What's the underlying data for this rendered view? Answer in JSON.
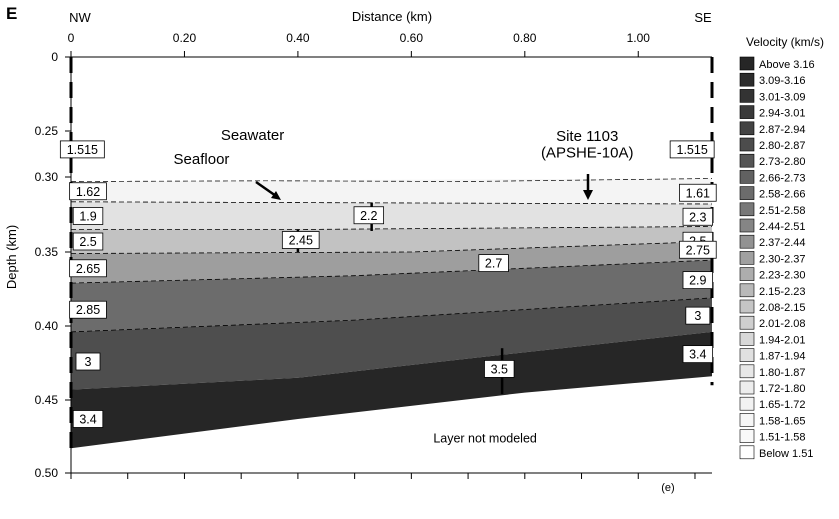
{
  "panel_letter": "E",
  "panel_tag": "(e)",
  "chart_data": {
    "type": "heatmap",
    "title": "",
    "xlabel": "Distance (km)",
    "ylabel": "Depth (km)",
    "xlim": [
      0,
      1.13
    ],
    "ylim": [
      0.5,
      0
    ],
    "x_ticks": [
      "0",
      "0.20",
      "0.40",
      "0.60",
      "0.80",
      "1.00"
    ],
    "x_tick_values": [
      0,
      0.2,
      0.4,
      0.6,
      0.8,
      1.0
    ],
    "y_ticks": [
      "0",
      "0.25",
      "0.30",
      "0.35",
      "0.40",
      "0.45",
      "0.50"
    ],
    "y_tick_values": [
      0,
      0.25,
      0.3,
      0.35,
      0.4,
      0.45,
      0.5
    ],
    "y_axis_note": "axis break between 0 and 0.25 km",
    "grid": false,
    "end_labels": {
      "left": "NW",
      "right": "SE"
    },
    "legend": {
      "title": "Velocity (km/s)",
      "position": "right",
      "entries": [
        {
          "label": "Above 3.16",
          "color": "#262626"
        },
        {
          "label": "3.09-3.16",
          "color": "#2c2c2c"
        },
        {
          "label": "3.01-3.09",
          "color": "#333333"
        },
        {
          "label": "2.94-3.01",
          "color": "#3a3a3a"
        },
        {
          "label": "2.87-2.94",
          "color": "#434343"
        },
        {
          "label": "2.80-2.87",
          "color": "#4c4c4c"
        },
        {
          "label": "2.73-2.80",
          "color": "#555555"
        },
        {
          "label": "2.66-2.73",
          "color": "#616161"
        },
        {
          "label": "2.58-2.66",
          "color": "#6c6c6c"
        },
        {
          "label": "2.51-2.58",
          "color": "#787878"
        },
        {
          "label": "2.44-2.51",
          "color": "#858585"
        },
        {
          "label": "2.37-2.44",
          "color": "#929292"
        },
        {
          "label": "2.30-2.37",
          "color": "#a0a0a0"
        },
        {
          "label": "2.23-2.30",
          "color": "#adadad"
        },
        {
          "label": "2.15-2.23",
          "color": "#b9b9b9"
        },
        {
          "label": "2.08-2.15",
          "color": "#c5c5c5"
        },
        {
          "label": "2.01-2.08",
          "color": "#cfcfcf"
        },
        {
          "label": "1.94-2.01",
          "color": "#d8d8d8"
        },
        {
          "label": "1.87-1.94",
          "color": "#e0e0e0"
        },
        {
          "label": "1.80-1.87",
          "color": "#e7e7e7"
        },
        {
          "label": "1.72-1.80",
          "color": "#ededed"
        },
        {
          "label": "1.65-1.72",
          "color": "#f2f2f2"
        },
        {
          "label": "1.58-1.65",
          "color": "#f6f6f6"
        },
        {
          "label": "1.51-1.58",
          "color": "#f9f9f9"
        },
        {
          "label": "Below 1.51",
          "color": "#ffffff"
        }
      ]
    },
    "layers": [
      {
        "top": [
          [
            0,
            0.303
          ],
          [
            0.5,
            0.302
          ],
          [
            1.13,
            0.301
          ]
        ],
        "bottom": [
          [
            0,
            0.3165
          ],
          [
            1.13,
            0.318
          ]
        ],
        "fill": "#f4f4f4"
      },
      {
        "top": [
          [
            0,
            0.3165
          ],
          [
            1.13,
            0.318
          ]
        ],
        "bottom": [
          [
            0,
            0.335
          ],
          [
            0.4,
            0.335
          ],
          [
            1.13,
            0.333
          ]
        ],
        "fill": "#e2e2e2"
      },
      {
        "top": [
          [
            0,
            0.335
          ],
          [
            0.4,
            0.335
          ],
          [
            1.13,
            0.333
          ]
        ],
        "bottom": [
          [
            0,
            0.351
          ],
          [
            0.6,
            0.35
          ],
          [
            1.13,
            0.343
          ]
        ],
        "fill": "#c2c2c2"
      },
      {
        "top": [
          [
            0,
            0.351
          ],
          [
            0.6,
            0.35
          ],
          [
            1.13,
            0.343
          ]
        ],
        "bottom": [
          [
            0,
            0.371
          ],
          [
            0.5,
            0.366
          ],
          [
            1.13,
            0.3555
          ]
        ],
        "fill": "#9e9e9e"
      },
      {
        "top": [
          [
            0,
            0.371
          ],
          [
            0.5,
            0.366
          ],
          [
            1.13,
            0.3555
          ]
        ],
        "bottom": [
          [
            0,
            0.404
          ],
          [
            0.5,
            0.396
          ],
          [
            1.13,
            0.381
          ]
        ],
        "fill": "#6c6c6c"
      },
      {
        "top": [
          [
            0,
            0.404
          ],
          [
            0.5,
            0.396
          ],
          [
            1.13,
            0.381
          ]
        ],
        "bottom": [
          [
            0,
            0.443
          ],
          [
            0.4,
            0.435
          ],
          [
            0.77,
            0.419
          ],
          [
            1.13,
            0.404
          ]
        ],
        "fill": "#4e4e4e"
      },
      {
        "top": [
          [
            0,
            0.443
          ],
          [
            0.4,
            0.435
          ],
          [
            0.77,
            0.419
          ],
          [
            1.13,
            0.404
          ]
        ],
        "bottom": [
          [
            0,
            0.483
          ],
          [
            0.4,
            0.463
          ],
          [
            0.8,
            0.445
          ],
          [
            1.13,
            0.434
          ]
        ],
        "fill": "#262626"
      }
    ],
    "interfaces": [
      [
        [
          0,
          0.303
        ],
        [
          0.35,
          0.3025
        ],
        [
          0.7,
          0.303
        ],
        [
          1.13,
          0.301
        ]
      ],
      [
        [
          0,
          0.3165
        ],
        [
          1.13,
          0.318
        ]
      ],
      [
        [
          0,
          0.335
        ],
        [
          0.4,
          0.335
        ],
        [
          1.13,
          0.333
        ]
      ],
      [
        [
          0,
          0.351
        ],
        [
          0.6,
          0.35
        ],
        [
          1.13,
          0.343
        ]
      ],
      [
        [
          0,
          0.371
        ],
        [
          0.5,
          0.366
        ],
        [
          1.13,
          0.3555
        ]
      ],
      [
        [
          0,
          0.404
        ],
        [
          0.5,
          0.396
        ],
        [
          1.13,
          0.381
        ]
      ]
    ],
    "velocity_labels": [
      {
        "text": "1.515",
        "x": 0.02,
        "y": 0.27
      },
      {
        "text": "1.515",
        "x": 1.095,
        "y": 0.27
      },
      {
        "text": "1.62",
        "x": 0.03,
        "y": 0.3095
      },
      {
        "text": "1.61",
        "x": 1.105,
        "y": 0.3105
      },
      {
        "text": "1.9",
        "x": 0.03,
        "y": 0.326
      },
      {
        "text": "2.2",
        "x": 0.525,
        "y": 0.3255
      },
      {
        "text": "2.3",
        "x": 1.105,
        "y": 0.3265
      },
      {
        "text": "2.5",
        "x": 0.03,
        "y": 0.343
      },
      {
        "text": "2.45",
        "x": 0.405,
        "y": 0.342
      },
      {
        "text": "2.5",
        "x": 1.105,
        "y": 0.3425
      },
      {
        "text": "2.75",
        "x": 1.105,
        "y": 0.3485
      },
      {
        "text": "2.65",
        "x": 0.03,
        "y": 0.361
      },
      {
        "text": "2.7",
        "x": 0.745,
        "y": 0.3575
      },
      {
        "text": "2.9",
        "x": 1.105,
        "y": 0.369
      },
      {
        "text": "2.85",
        "x": 0.03,
        "y": 0.389
      },
      {
        "text": "3",
        "x": 1.105,
        "y": 0.393
      },
      {
        "text": "3",
        "x": 0.03,
        "y": 0.424
      },
      {
        "text": "3.4",
        "x": 1.105,
        "y": 0.419
      },
      {
        "text": "3.5",
        "x": 0.755,
        "y": 0.429
      },
      {
        "text": "3.4",
        "x": 0.03,
        "y": 0.463
      }
    ],
    "annotations": [
      {
        "text": "Seawater",
        "x": 0.32,
        "y": 0.26
      },
      {
        "text": "Seafloor",
        "x": 0.23,
        "y": 0.286
      },
      {
        "text": "Site 1103",
        "x": 0.91,
        "y": 0.261
      },
      {
        "text": "(APSHE-10A)",
        "x": 0.91,
        "y": 0.279
      },
      {
        "text": "Layer not modeled",
        "x": 0.73,
        "y": 0.479
      }
    ]
  }
}
